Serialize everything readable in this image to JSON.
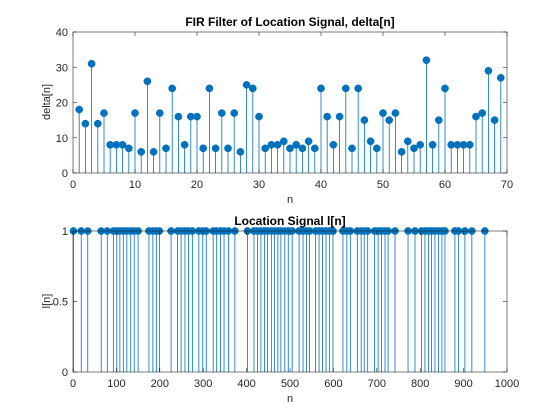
{
  "figure": {
    "background": "#ffffff",
    "axes_color": "#262626",
    "series_color": "#0072BD"
  },
  "chart_data": [
    {
      "type": "stem",
      "title": "FIR Filter of Location Signal, delta[n]",
      "xlabel": "n",
      "ylabel": "delta[n]",
      "xlim": [
        0,
        70
      ],
      "ylim": [
        0,
        40
      ],
      "xticks": [
        0,
        10,
        20,
        30,
        40,
        50,
        60,
        70
      ],
      "yticks": [
        0,
        10,
        20,
        30,
        40
      ],
      "grid": false,
      "x": [
        1,
        2,
        3,
        4,
        5,
        6,
        7,
        8,
        9,
        10,
        11,
        12,
        13,
        14,
        15,
        16,
        17,
        18,
        19,
        20,
        21,
        22,
        23,
        24,
        25,
        26,
        27,
        28,
        29,
        30,
        31,
        32,
        33,
        34,
        35,
        36,
        37,
        38,
        39,
        40,
        41,
        42,
        43,
        44,
        45,
        46,
        47,
        48,
        49,
        50,
        51,
        52,
        53,
        54,
        55,
        56,
        57,
        58,
        59,
        60,
        61,
        62,
        63,
        64,
        65,
        66,
        67,
        68,
        69
      ],
      "y": [
        18,
        14,
        31,
        14,
        17,
        8,
        8,
        8,
        7,
        17,
        6,
        26,
        6,
        17,
        7,
        24,
        16,
        8,
        16,
        16,
        7,
        24,
        7,
        17,
        7,
        17,
        6,
        25,
        24,
        16,
        7,
        8,
        8,
        9,
        7,
        8,
        7,
        9,
        7,
        24,
        16,
        8,
        16,
        24,
        7,
        24,
        15,
        9,
        7,
        17,
        15,
        17,
        6,
        9,
        7,
        8,
        32,
        8,
        15,
        24,
        8,
        8,
        8,
        8,
        16,
        17,
        29,
        15,
        27
      ]
    },
    {
      "type": "stem",
      "title": "Location Signal l[n]",
      "xlabel": "n",
      "ylabel": "l[n]",
      "xlim": [
        0,
        1000
      ],
      "ylim": [
        0,
        1
      ],
      "xticks": [
        0,
        100,
        200,
        300,
        400,
        500,
        600,
        700,
        800,
        900,
        1000
      ],
      "yticks": [
        0,
        0.5,
        1
      ],
      "ytick_labels": [
        "0",
        "0.5",
        "1"
      ],
      "grid": false,
      "x": [
        1,
        19,
        34,
        65,
        79,
        93,
        101,
        108,
        116,
        124,
        133,
        141,
        150,
        175,
        184,
        192,
        199,
        226,
        241,
        249,
        258,
        266,
        275,
        290,
        299,
        307,
        323,
        331,
        340,
        348,
        358,
        373,
        402,
        417,
        425,
        433,
        441,
        448,
        457,
        464,
        472,
        479,
        488,
        496,
        505,
        521,
        530,
        538,
        545,
        559,
        567,
        575,
        583,
        591,
        599,
        622,
        631,
        639,
        655,
        664,
        671,
        679,
        695,
        703,
        711,
        719,
        726,
        742,
        772,
        788,
        803,
        811,
        819,
        826,
        834,
        842,
        850,
        857,
        880,
        888,
        903,
        919,
        949
      ],
      "y_value": 1
    }
  ]
}
